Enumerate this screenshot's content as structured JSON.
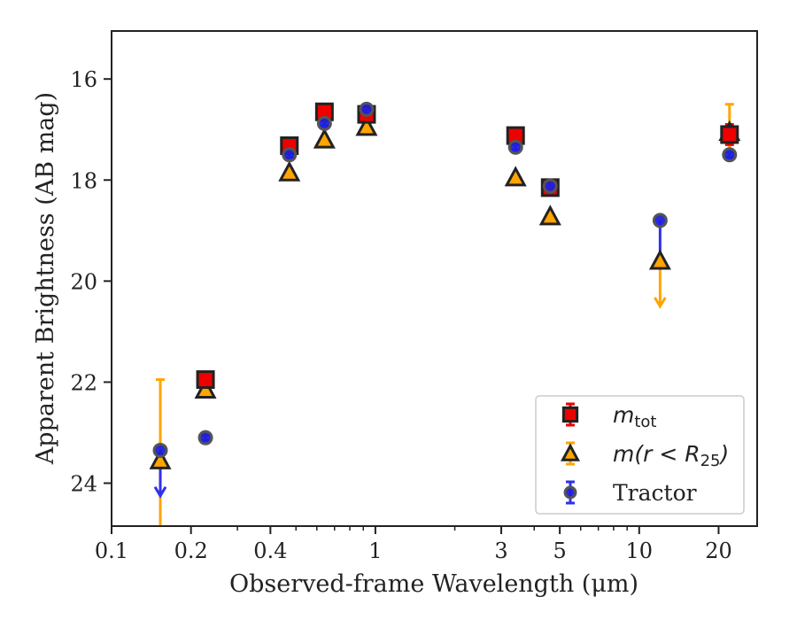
{
  "chart_data": {
    "type": "scatter",
    "xlabel": "Observed-frame Wavelength (μm)",
    "ylabel": "Apparent Brightness (AB mag)",
    "xscale": "log",
    "xlim": [
      0.1,
      28
    ],
    "ylim": [
      24.85,
      15.05
    ],
    "y_inverted": true,
    "xticks": [
      0.1,
      0.2,
      0.4,
      1,
      3,
      5,
      10,
      20
    ],
    "xtick_labels": [
      "0.1",
      "0.2",
      "0.4",
      "1",
      "3",
      "5",
      "10",
      "20"
    ],
    "yticks": [
      16,
      18,
      20,
      22,
      24
    ],
    "ytick_labels": [
      "16",
      "18",
      "20",
      "22",
      "24"
    ],
    "grid": false,
    "legend_position": "lower-right",
    "series": [
      {
        "name_base": "m",
        "name_sub": "tot",
        "marker": "square",
        "color": "#ee0000",
        "errcolor": "#ee0000",
        "points": [
          {
            "x": 0.227,
            "y": 21.95,
            "err": 0.1
          },
          {
            "x": 0.472,
            "y": 17.32,
            "err": 0.05
          },
          {
            "x": 0.641,
            "y": 16.65,
            "err": 0.05
          },
          {
            "x": 0.926,
            "y": 16.7,
            "err": 0.05
          },
          {
            "x": 3.4,
            "y": 17.12,
            "err": 0.05
          },
          {
            "x": 4.6,
            "y": 18.15,
            "err": 0.05
          },
          {
            "x": 22.0,
            "y": 17.1,
            "err": 0.2
          }
        ]
      },
      {
        "name_base": "m(r < R",
        "name_sub": "25",
        "name_tail": ")",
        "marker": "triangle",
        "color": "#ffa500",
        "errcolor": "#ffa500",
        "points": [
          {
            "x": 0.153,
            "y": 23.55,
            "err_up": 1.6,
            "upper_limit": true
          },
          {
            "x": 0.227,
            "y": 22.15,
            "err": 0.05
          },
          {
            "x": 0.472,
            "y": 17.85,
            "err": 0.05
          },
          {
            "x": 0.641,
            "y": 17.2,
            "err": 0.05
          },
          {
            "x": 0.926,
            "y": 16.95,
            "err": 0.05
          },
          {
            "x": 3.4,
            "y": 17.95,
            "err": 0.05
          },
          {
            "x": 4.6,
            "y": 18.72,
            "err": 0.05
          },
          {
            "x": 12.0,
            "y": 19.6,
            "upper_limit": true,
            "limit_to": 20.5
          },
          {
            "x": 22.0,
            "y": 17.05,
            "err": 0.55
          }
        ]
      },
      {
        "name": "Tractor",
        "marker": "circle",
        "color": "#1f1fdd",
        "errcolor": "#3030ee",
        "points": [
          {
            "x": 0.153,
            "y": 23.35,
            "upper_limit": true,
            "limit_to": 24.25
          },
          {
            "x": 0.227,
            "y": 23.1,
            "err": 0.05
          },
          {
            "x": 0.472,
            "y": 17.5,
            "err": 0.05
          },
          {
            "x": 0.641,
            "y": 16.88,
            "err": 0.05
          },
          {
            "x": 0.926,
            "y": 16.6,
            "err": 0.05
          },
          {
            "x": 3.4,
            "y": 17.35,
            "err": 0.05
          },
          {
            "x": 4.6,
            "y": 18.12,
            "err": 0.05
          },
          {
            "x": 12.0,
            "y": 18.8,
            "err_low": 0.8
          },
          {
            "x": 22.0,
            "y": 17.5,
            "err": 0.05
          }
        ]
      }
    ]
  }
}
